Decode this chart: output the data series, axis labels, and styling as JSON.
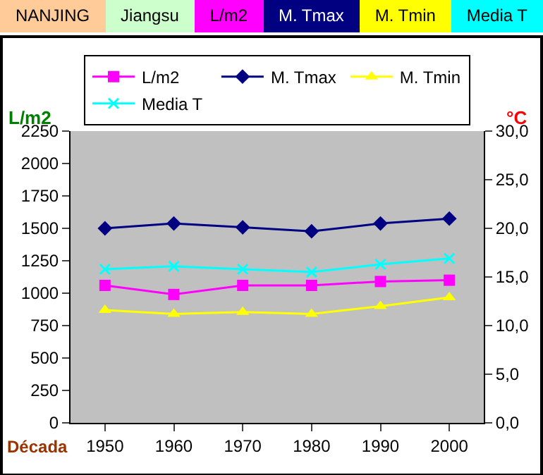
{
  "chart_data": {
    "type": "line",
    "xlabel": "Década",
    "ylabel": "L/m2",
    "y2label": "°C",
    "annotations": [
      "NANJING",
      "Jiangsu",
      "L/m2",
      "M. Tmax",
      "M. Tmin",
      "Media T"
    ],
    "x": [
      1950,
      1960,
      1970,
      1980,
      1990,
      2000
    ],
    "xlim": [
      1945,
      2005
    ],
    "xticks": [
      1950,
      1960,
      1970,
      1980,
      1990,
      2000
    ],
    "ylim": [
      0,
      2250
    ],
    "yticks": [
      0,
      250,
      500,
      750,
      1000,
      1250,
      1500,
      1750,
      2000,
      2250
    ],
    "y2lim": [
      0,
      30
    ],
    "y2ticks": [
      {
        "value": 0,
        "label": "0,0"
      },
      {
        "value": 5,
        "label": "5,0"
      },
      {
        "value": 10,
        "label": "10,0"
      },
      {
        "value": 15,
        "label": "15,0"
      },
      {
        "value": 20,
        "label": "20,0"
      },
      {
        "value": 25,
        "label": "25,0"
      },
      {
        "value": 30,
        "label": "30,0"
      }
    ],
    "grid": false,
    "legend": "top",
    "line_style": "solid",
    "series": [
      {
        "name": "L/m2",
        "color": "#ff00ff",
        "marker": "square",
        "values": [
          1060,
          990,
          1060,
          1060,
          1090,
          1100
        ]
      },
      {
        "name": "M. Tmax",
        "color": "#000080",
        "marker": "diamond",
        "axis": "y2",
        "values": [
          20.0,
          20.5,
          20.1,
          19.7,
          20.5,
          21.0
        ]
      },
      {
        "name": "M. Tmin",
        "color": "#ffff00",
        "marker": "triangle",
        "axis": "y2",
        "values": [
          11.6,
          11.2,
          11.4,
          11.2,
          12.0,
          12.9
        ]
      },
      {
        "name": "Media T",
        "color": "#00ffff",
        "marker": "cross",
        "axis": "y2",
        "values": [
          15.8,
          16.1,
          15.8,
          15.5,
          16.3,
          16.9
        ]
      }
    ]
  }
}
